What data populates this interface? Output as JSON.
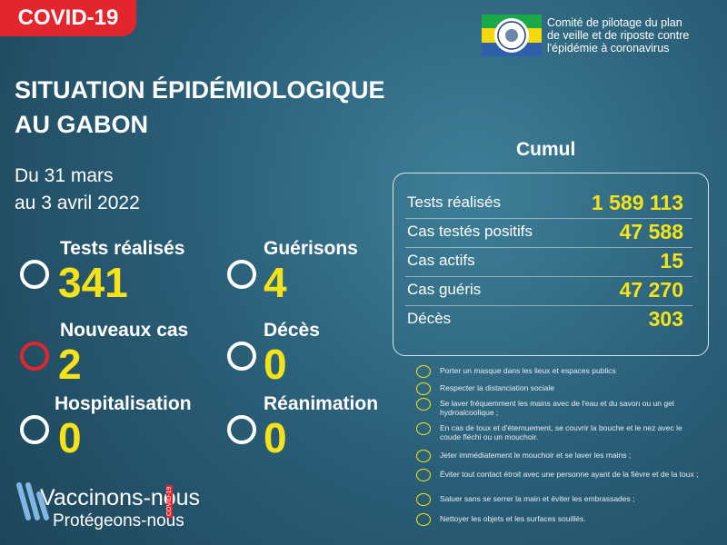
{
  "header": {
    "badge": "COVID-19",
    "org_lines": [
      "Comité de pilotage du plan",
      "de veille et de riposte contre",
      "l'épidémie à coronavirus"
    ]
  },
  "title_lines": [
    "SITUATION ÉPIDÉMIOLOGIQUE",
    "AU GABON"
  ],
  "period_lines": [
    "Du 31  mars",
    "au 3 avril 2022"
  ],
  "stats": [
    {
      "label": "Tests réalisés",
      "value": 341
    },
    {
      "label": "Guérisons",
      "value": 4
    },
    {
      "label": "Nouveaux cas",
      "value": 2
    },
    {
      "label": "Décès",
      "value": 0
    },
    {
      "label": "Hospitalisation",
      "value": 0
    },
    {
      "label": "Réanimation",
      "value": 0
    }
  ],
  "cumul": {
    "title": "Cumul",
    "rows": [
      {
        "label": "Tests réalisés",
        "value": "1 589 113"
      },
      {
        "label": "Cas testés positifs",
        "value": "47 588"
      },
      {
        "label": "Cas actifs",
        "value": 15
      },
      {
        "label": "Cas guéris",
        "value": "47 270"
      },
      {
        "label": "Décès",
        "value": 303
      }
    ]
  },
  "measures": [
    "Porter un masque dans les lieux et espaces publics",
    "Respecter la distanciation sociale",
    "Se laver fréquemment les mains avec de l'eau et du savon ou un gel hydroalcoolique ;",
    "En cas de toux et d'éternuement, se couvrir la bouche et le nez avec le coude fléchi ou un mouchoir.",
    "Jeter immédiatement le mouchoir et se laver les mains ;",
    "Éviter tout contact étroit avec une personne ayant de la fièvre et de la toux ;",
    "Saluer sans se serrer la main et éviter les embrassades ;",
    "Nettoyer les objets et les surfaces souillés."
  ],
  "footer": {
    "line1": "Vaccinons-nous",
    "line2": "Protégeons-nous",
    "tag": "COVID-19"
  }
}
